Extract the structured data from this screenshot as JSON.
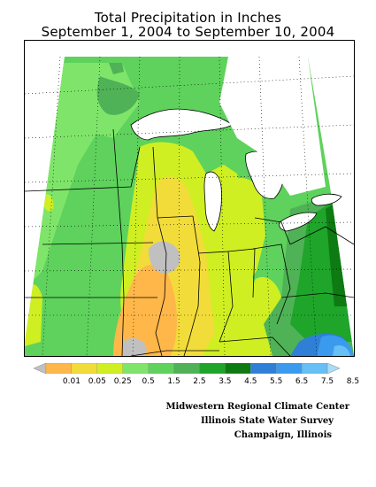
{
  "header": {
    "title_line1": "Total Precipitation in Inches",
    "title_line2": "September 1, 2004 to September 10, 2004"
  },
  "legend": {
    "labels": [
      "0.01",
      "0.05",
      "0.25",
      "0.5",
      "1.5",
      "2.5",
      "3.5",
      "4.5",
      "5.5",
      "6.5",
      "7.5",
      "8.5"
    ],
    "colors": [
      "#c0c0c0",
      "#ffb74a",
      "#f2dc3a",
      "#cfef22",
      "#7fe56a",
      "#5ed25c",
      "#4fb256",
      "#1ea52a",
      "#0d7a12",
      "#2f7fd6",
      "#3a9bee",
      "#66bff5",
      "#a9dcf7"
    ]
  },
  "credits": {
    "line1": "Midwestern Regional Climate Center",
    "line2": "Illinois State Water Survey",
    "line3": "Champaign, Illinois"
  },
  "map": {
    "region": "Midwestern United States",
    "colors": {
      "background": "#ffffff",
      "lake": "#ffffff",
      "border": "#000000"
    }
  }
}
